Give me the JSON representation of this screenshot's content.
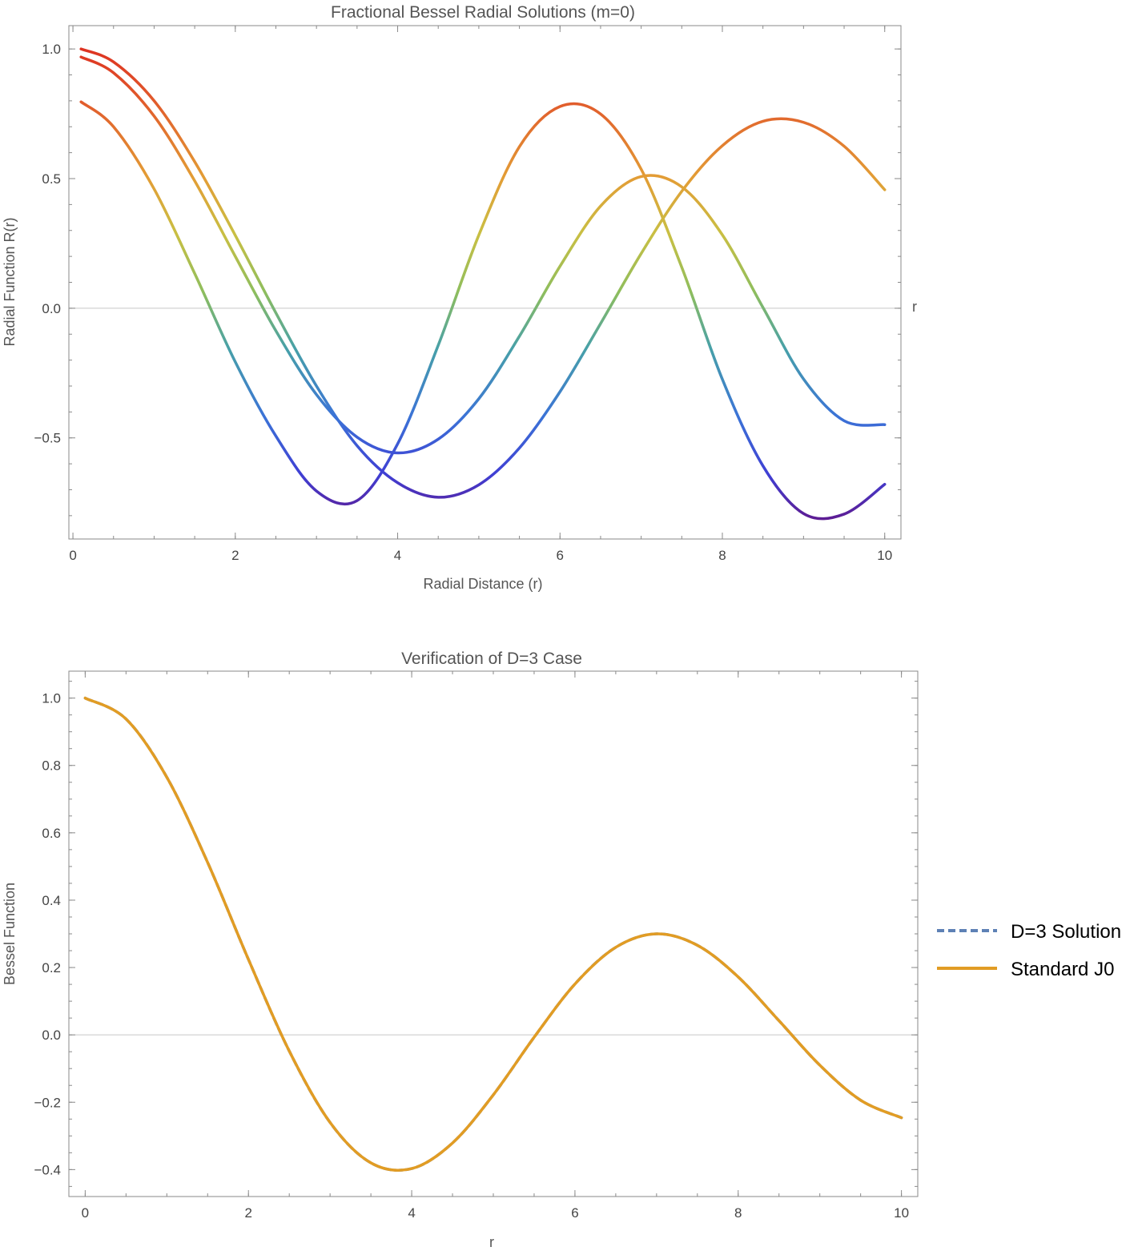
{
  "chart_data": [
    {
      "type": "line",
      "title": "Fractional Bessel Radial Solutions (m=0)",
      "xlabel": "Radial Distance (r)",
      "ylabel": "Radial Function R(r)",
      "axis_end_label": "r",
      "xlim": [
        -0.05,
        10.2
      ],
      "ylim": [
        -0.89,
        1.09
      ],
      "xticks": [
        0,
        2,
        4,
        6,
        8,
        10
      ],
      "yticks": [
        -0.5,
        0.0,
        0.5,
        1.0
      ],
      "ytick_labels": [
        "−0.5",
        "0.0",
        "0.5",
        "1.0"
      ],
      "grid": false,
      "color_scheme": "value-gradient (purple-blue-green-yellow-orange-red)",
      "series": [
        {
          "x": [
            0.1,
            0.5,
            1.0,
            1.5,
            2.0,
            2.5,
            3.0,
            3.5,
            4.0,
            4.5,
            5.0,
            5.5,
            6.0,
            6.5,
            7.0,
            7.5,
            8.0,
            8.5,
            9.0,
            9.5,
            10.0
          ],
          "y": [
            1.0,
            0.95,
            0.8,
            0.565,
            0.281,
            -0.018,
            -0.3,
            -0.53,
            -0.673,
            -0.729,
            -0.681,
            -0.539,
            -0.322,
            -0.059,
            0.211,
            0.451,
            0.627,
            0.721,
            0.717,
            0.625,
            0.457
          ]
        },
        {
          "x": [
            0.1,
            0.5,
            1.0,
            1.5,
            2.0,
            2.5,
            3.0,
            3.5,
            4.0,
            4.5,
            5.0,
            5.5,
            6.0,
            6.5,
            7.0,
            7.5,
            8.0,
            8.5,
            9.0,
            9.5,
            10.0
          ],
          "y": [
            0.969,
            0.908,
            0.741,
            0.491,
            0.2,
            -0.087,
            -0.333,
            -0.497,
            -0.558,
            -0.505,
            -0.349,
            -0.108,
            0.162,
            0.394,
            0.508,
            0.468,
            0.283,
            0.003,
            -0.273,
            -0.434,
            -0.449
          ]
        },
        {
          "x": [
            0.1,
            0.5,
            1.0,
            1.5,
            2.0,
            2.5,
            3.0,
            3.5,
            4.0,
            4.5,
            5.0,
            5.5,
            6.0,
            6.5,
            7.0,
            7.5,
            8.0,
            8.5,
            9.0,
            9.5,
            10.0
          ],
          "y": [
            0.796,
            0.7,
            0.46,
            0.134,
            -0.207,
            -0.493,
            -0.705,
            -0.742,
            -0.523,
            -0.143,
            0.282,
            0.623,
            0.778,
            0.749,
            0.536,
            0.158,
            -0.274,
            -0.608,
            -0.792,
            -0.794,
            -0.679
          ]
        }
      ]
    },
    {
      "type": "line",
      "title": "Verification of D=3 Case",
      "xlabel": "r",
      "ylabel": "Bessel Function",
      "xlim": [
        -0.2,
        10.2
      ],
      "ylim": [
        -0.48,
        1.08
      ],
      "xticks": [
        0,
        2,
        4,
        6,
        8,
        10
      ],
      "yticks": [
        -0.4,
        -0.2,
        0.0,
        0.2,
        0.4,
        0.6,
        0.8,
        1.0
      ],
      "ytick_labels": [
        "−0.4",
        "−0.2",
        "0.0",
        "0.2",
        "0.4",
        "0.6",
        "0.8",
        "1.0"
      ],
      "grid": false,
      "legend_position": "right",
      "series": [
        {
          "name": "D=3 Solution",
          "style": "dashed",
          "color": "#5e81b5",
          "x": [
            0,
            0.5,
            1.0,
            1.5,
            2.0,
            2.5,
            3.0,
            3.5,
            4.0,
            4.5,
            5.0,
            5.5,
            6.0,
            6.5,
            7.0,
            7.5,
            8.0,
            8.5,
            9.0,
            9.5,
            10.0
          ],
          "y": [
            1.0,
            0.938,
            0.765,
            0.512,
            0.224,
            -0.048,
            -0.26,
            -0.38,
            -0.397,
            -0.321,
            -0.178,
            -0.007,
            0.151,
            0.26,
            0.3,
            0.266,
            0.172,
            0.042,
            -0.09,
            -0.194,
            -0.246
          ]
        },
        {
          "name": "Standard J0",
          "style": "solid",
          "color": "#e19c24",
          "x": [
            0,
            0.5,
            1.0,
            1.5,
            2.0,
            2.5,
            3.0,
            3.5,
            4.0,
            4.5,
            5.0,
            5.5,
            6.0,
            6.5,
            7.0,
            7.5,
            8.0,
            8.5,
            9.0,
            9.5,
            10.0
          ],
          "y": [
            1.0,
            0.938,
            0.765,
            0.512,
            0.224,
            -0.048,
            -0.26,
            -0.38,
            -0.397,
            -0.321,
            -0.178,
            -0.007,
            0.151,
            0.26,
            0.3,
            0.266,
            0.172,
            0.042,
            -0.09,
            -0.194,
            -0.246
          ]
        }
      ]
    }
  ]
}
